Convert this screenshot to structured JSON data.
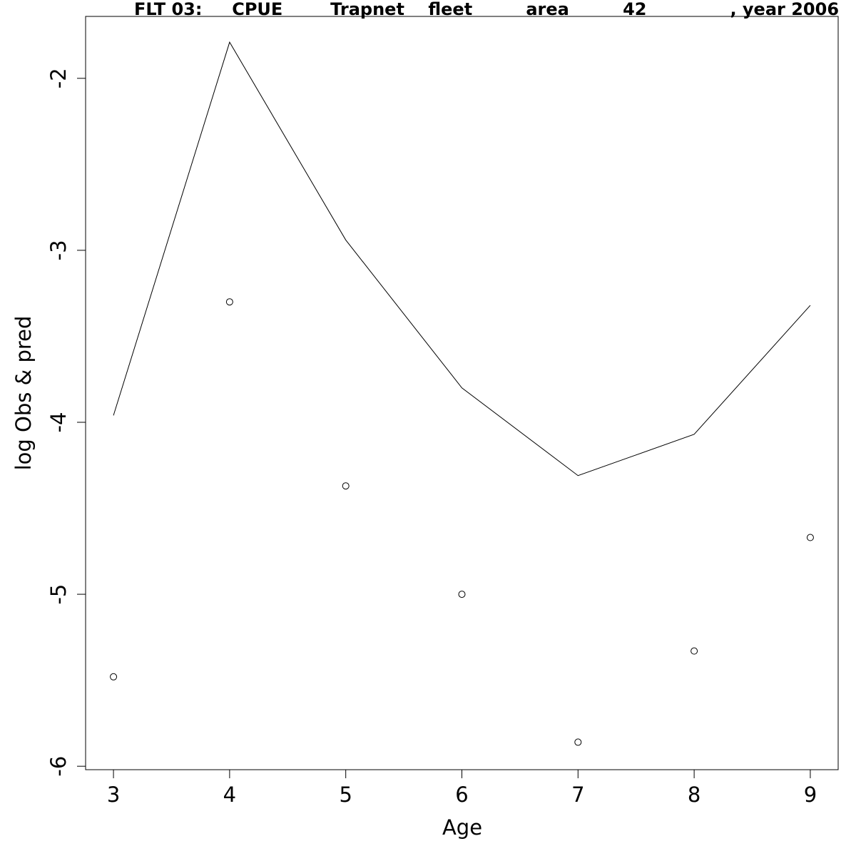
{
  "chart_data": {
    "type": "line",
    "title": "FLT 03:     CPUE        Trapnet    fleet         area         42              , year 2006",
    "xlabel": "Age",
    "ylabel": "log Obs & pred",
    "x": [
      3,
      4,
      5,
      6,
      7,
      8,
      9
    ],
    "xticks": [
      "3",
      "4",
      "5",
      "6",
      "7",
      "8",
      "9"
    ],
    "yticks": [
      "-6",
      "-5",
      "-4",
      "-3",
      "-2"
    ],
    "xlim": [
      2.76,
      9.24
    ],
    "ylim": [
      -6.02,
      -1.64
    ],
    "series": [
      {
        "style": "line",
        "values": [
          -3.96,
          -1.79,
          -2.94,
          -3.8,
          -4.31,
          -4.07,
          -3.32
        ]
      },
      {
        "style": "points",
        "values": [
          -5.48,
          -3.3,
          -4.37,
          -5.0,
          -5.86,
          -5.33,
          -4.67
        ]
      }
    ],
    "grid": false,
    "legend": "none"
  }
}
